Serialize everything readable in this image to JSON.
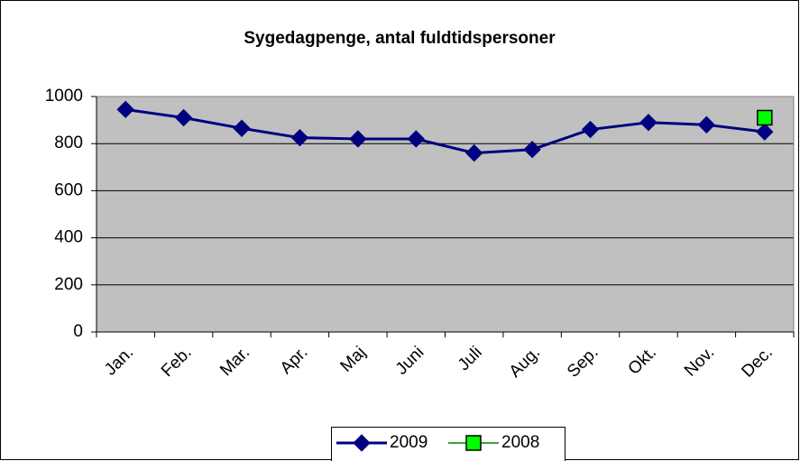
{
  "chart_data": {
    "type": "line",
    "title": "Sygedagpenge, antal fuldtidspersoner",
    "categories": [
      "Jan.",
      "Feb.",
      "Mar.",
      "Apr.",
      "Maj",
      "Juni",
      "Juli",
      "Aug.",
      "Sep.",
      "Okt.",
      "Nov.",
      "Dec."
    ],
    "series": [
      {
        "name": "2009",
        "color": "#000080",
        "marker": "diamond",
        "values": [
          945,
          910,
          865,
          825,
          820,
          820,
          760,
          775,
          860,
          890,
          880,
          850
        ]
      },
      {
        "name": "2008",
        "color": "#00ff00",
        "marker": "square",
        "values": [
          null,
          null,
          null,
          null,
          null,
          null,
          null,
          null,
          null,
          null,
          null,
          910
        ]
      }
    ],
    "ylim": [
      0,
      1000
    ],
    "yticks": [
      0,
      200,
      400,
      600,
      800,
      1000
    ],
    "grid": true,
    "legend": "bottom"
  }
}
